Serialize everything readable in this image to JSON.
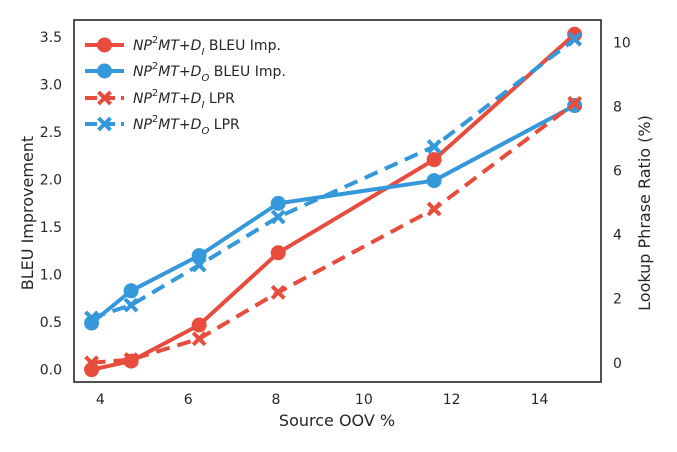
{
  "chart_data": {
    "type": "line",
    "xlabel": "Source OOV %",
    "ylabel_left": "BLEU Improvement",
    "ylabel_right": "Lookup Phrase Ratio (%)",
    "xlim": [
      3.4,
      15.4
    ],
    "ylim_left": [
      -0.13,
      3.68
    ],
    "ylim_right": [
      -0.6,
      10.7
    ],
    "xticks": [
      4,
      6,
      8,
      10,
      12,
      14
    ],
    "yticks_left": [
      0.0,
      0.5,
      1.0,
      1.5,
      2.0,
      2.5,
      3.0,
      3.5
    ],
    "yticks_right": [
      0,
      2,
      4,
      6,
      8,
      10
    ],
    "grid": false,
    "legend_position": "top-left",
    "series": [
      {
        "name": "NP²MT+D_I BLEU Imp.",
        "legend_base": "NP",
        "legend_sup": "2",
        "legend_mid": "MT+D",
        "legend_sub": "I",
        "legend_tail": " BLEU Imp.",
        "axis": "left",
        "color": "#e74c3c",
        "style": "solid",
        "marker": "circle",
        "x": [
          3.8,
          4.7,
          6.25,
          8.05,
          11.6,
          14.8
        ],
        "y": [
          0.0,
          0.09,
          0.47,
          1.23,
          2.21,
          3.53
        ]
      },
      {
        "name": "NP²MT+D_O BLEU Imp.",
        "legend_base": "NP",
        "legend_sup": "2",
        "legend_mid": "MT+D",
        "legend_sub": "O",
        "legend_tail": " BLEU Imp.",
        "axis": "left",
        "color": "#3498db",
        "style": "solid",
        "marker": "circle",
        "x": [
          3.8,
          4.7,
          6.25,
          8.05,
          11.6,
          14.8
        ],
        "y": [
          0.49,
          0.83,
          1.2,
          1.75,
          1.99,
          2.78
        ]
      },
      {
        "name": "NP²MT+D_I LPR",
        "legend_base": "NP",
        "legend_sup": "2",
        "legend_mid": "MT+D",
        "legend_sub": "I",
        "legend_tail": " LPR",
        "axis": "right",
        "color": "#e74c3c",
        "style": "dashed",
        "marker": "x",
        "x": [
          3.8,
          4.7,
          6.25,
          8.05,
          11.6,
          14.8
        ],
        "y": [
          0.0,
          0.1,
          0.75,
          2.2,
          4.8,
          8.1
        ]
      },
      {
        "name": "NP²MT+D_O LPR",
        "legend_base": "NP",
        "legend_sup": "2",
        "legend_mid": "MT+D",
        "legend_sub": "O",
        "legend_tail": " LPR",
        "axis": "right",
        "color": "#3498db",
        "style": "dashed",
        "marker": "x",
        "x": [
          3.8,
          4.7,
          6.25,
          8.05,
          11.6,
          14.8
        ],
        "y": [
          1.4,
          1.8,
          3.05,
          4.55,
          6.75,
          10.1
        ]
      }
    ]
  }
}
